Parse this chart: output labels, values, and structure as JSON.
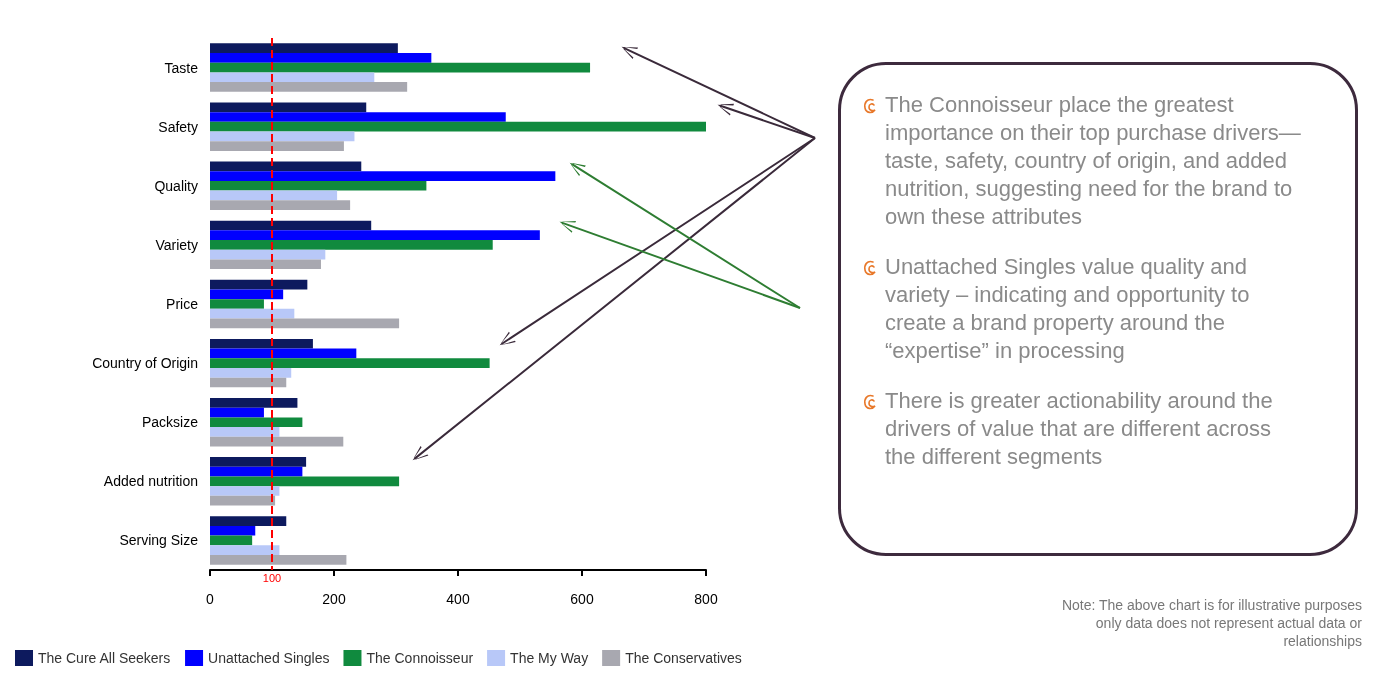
{
  "chart_data": {
    "type": "bar",
    "orientation": "horizontal",
    "categories": [
      "Taste",
      "Safety",
      "Quality",
      "Variety",
      "Price",
      "Country of Origin",
      "Packsize",
      "Added nutrition",
      "Serving Size"
    ],
    "series": [
      {
        "name": "The Cure All Seekers",
        "color": "#0d1a5e",
        "values": [
          303,
          252,
          244,
          260,
          157,
          166,
          141,
          155,
          123
        ]
      },
      {
        "name": "Unattached Singles",
        "color": "#0000ff",
        "values": [
          357,
          477,
          557,
          532,
          118,
          236,
          87,
          149,
          73
        ]
      },
      {
        "name": "The Connoisseur",
        "color": "#108a3e",
        "values": [
          613,
          800,
          349,
          456,
          87,
          451,
          149,
          305,
          68
        ]
      },
      {
        "name": "The My Way",
        "color": "#b8c8f8",
        "values": [
          265,
          233,
          205,
          186,
          136,
          131,
          112,
          112,
          112
        ]
      },
      {
        "name": "The Conservatives",
        "color": "#a8a8b0",
        "values": [
          318,
          216,
          226,
          179,
          305,
          123,
          215,
          105,
          220
        ]
      }
    ],
    "xlim": [
      0,
      800
    ],
    "xticks": [
      0,
      200,
      400,
      600,
      800
    ],
    "ref_lines": [
      {
        "axis": "x",
        "value": 100,
        "label": "100",
        "color": "#ff0000",
        "line_style": "dashed"
      }
    ],
    "legend": "bottom left",
    "grid": false,
    "annotations": [
      "The Connoisseur place the greatest importance on their top purchase drivers—taste, safety, country of origin, and added nutrition, suggesting need for the brand to own these attributes",
      "Unattached Singles value quality and variety – indicating and opportunity to create a brand property around the “expertise” in processing",
      "There is greater actionability around the drivers of value that are different across the different segments",
      "Note: The above chart is for illustrative purposes only data does not represent actual data or relationships"
    ]
  }
}
